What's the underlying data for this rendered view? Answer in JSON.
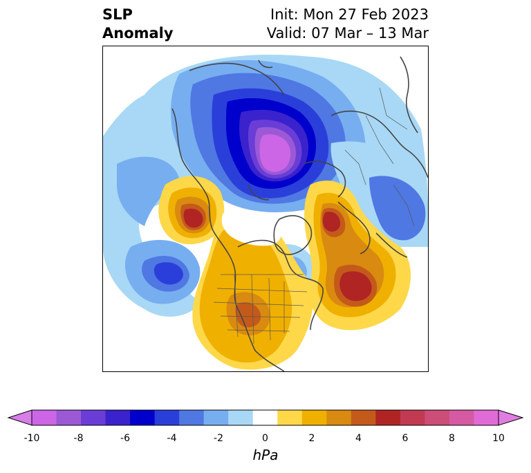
{
  "title": {
    "line1": "SLP",
    "line2": "Anomaly",
    "init": "Init: Mon 27 Feb 2023",
    "valid": "Valid: 07 Mar – 13 Mar"
  },
  "colorbar": {
    "unit": "hPa",
    "ticks": [
      "-10",
      "-8",
      "-6",
      "-4",
      "-2",
      "0",
      "2",
      "4",
      "6",
      "8",
      "10"
    ],
    "colors": [
      "#cc66e6",
      "#9b59d6",
      "#6a3dd6",
      "#3a22cc",
      "#0000cc",
      "#2a3fd9",
      "#4f78e3",
      "#77aef0",
      "#a8d8f5",
      "#ffffff",
      "#ffd84a",
      "#f0b000",
      "#d98a10",
      "#c45a1a",
      "#b02424",
      "#c23a52",
      "#cc4d78",
      "#d65aa2",
      "#e06bd6"
    ],
    "under_color": "#d77ee9",
    "over_color": "#e07de0"
  }
}
